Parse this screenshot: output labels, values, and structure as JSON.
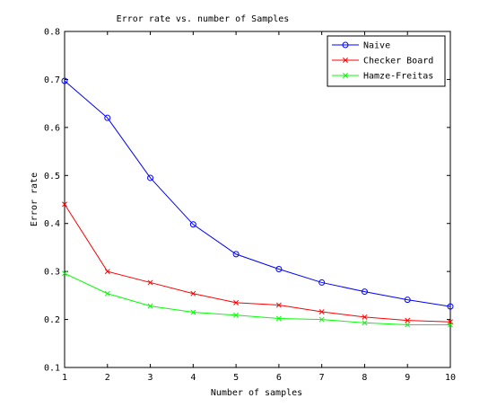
{
  "chart_data": {
    "type": "line",
    "title": "Error rate vs. number of Samples",
    "xlabel": "Number of samples",
    "ylabel": "Error rate",
    "xlim": [
      1,
      10
    ],
    "ylim": [
      0.1,
      0.8
    ],
    "xticks": [
      1,
      2,
      3,
      4,
      5,
      6,
      7,
      8,
      9,
      10
    ],
    "yticks": [
      "0.1",
      "0.2",
      "0.3",
      "0.4",
      "0.5",
      "0.6",
      "0.7",
      "0.8"
    ],
    "grid": false,
    "legend_position": "top-right",
    "x": [
      1,
      2,
      3,
      4,
      5,
      6,
      7,
      8,
      9,
      10
    ],
    "series": [
      {
        "name": "Naive",
        "color": "#0000ff",
        "marker": "circle",
        "values": [
          0.697,
          0.62,
          0.495,
          0.398,
          0.336,
          0.305,
          0.277,
          0.258,
          0.241,
          0.227
        ]
      },
      {
        "name": "Checker Board",
        "color": "#ff0000",
        "marker": "x",
        "values": [
          0.44,
          0.3,
          0.277,
          0.254,
          0.235,
          0.23,
          0.216,
          0.205,
          0.198,
          0.195
        ]
      },
      {
        "name": "Hamze-Freitas",
        "color": "#00ff00",
        "marker": "x",
        "values": [
          0.296,
          0.254,
          0.228,
          0.215,
          0.209,
          0.202,
          0.2,
          0.193,
          0.189,
          0.189
        ]
      }
    ]
  }
}
